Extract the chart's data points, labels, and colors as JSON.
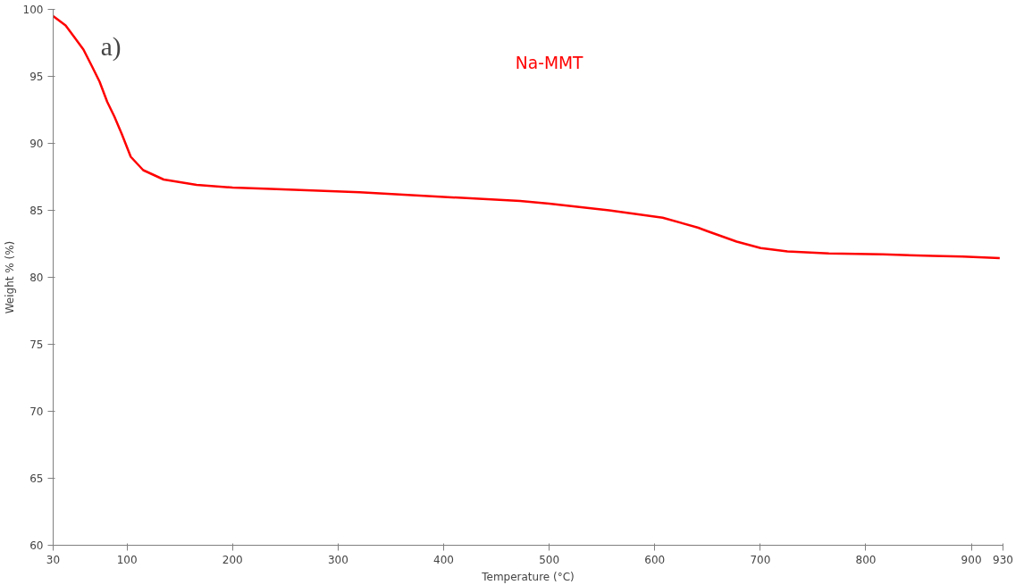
{
  "chart_data": {
    "type": "line",
    "xlabel": "Temperature (°C)",
    "ylabel": "Weight % (%)",
    "annotations": [
      "a)"
    ],
    "series": [
      {
        "name": "Na-MMT",
        "color": "#ff0000",
        "x": [
          30,
          41.8,
          50.3,
          58.7,
          67.1,
          74,
          81.2,
          88,
          95,
          103.5,
          115.3,
          134.7,
          165.9,
          200,
          236,
          303.6,
          320.4,
          400,
          472.4,
          500,
          556.8,
          607.5,
          641.3,
          649.7,
          677.6,
          700.4,
          725.7,
          765,
          815.8,
          863.5,
          891.8,
          926.9
        ],
        "values": [
          99.5,
          98.8,
          97.9,
          97.0,
          95.7,
          94.6,
          93.1,
          92.0,
          90.7,
          89.0,
          88.0,
          87.3,
          86.9,
          86.7,
          86.6,
          86.4,
          86.35,
          86.0,
          85.7,
          85.5,
          85.0,
          84.45,
          83.7,
          83.45,
          82.67,
          82.18,
          81.93,
          81.78,
          81.71,
          81.6,
          81.55,
          81.44
        ]
      }
    ],
    "xlim": [
      30,
      930
    ],
    "xticks": [
      30,
      100,
      200,
      300,
      400,
      500,
      600,
      700,
      800,
      900,
      930
    ],
    "ylim": [
      60,
      100
    ],
    "yticks": [
      60,
      65,
      70,
      75,
      80,
      85,
      90,
      95,
      100
    ],
    "grid": false,
    "line_style": "solid",
    "marker": "none"
  }
}
